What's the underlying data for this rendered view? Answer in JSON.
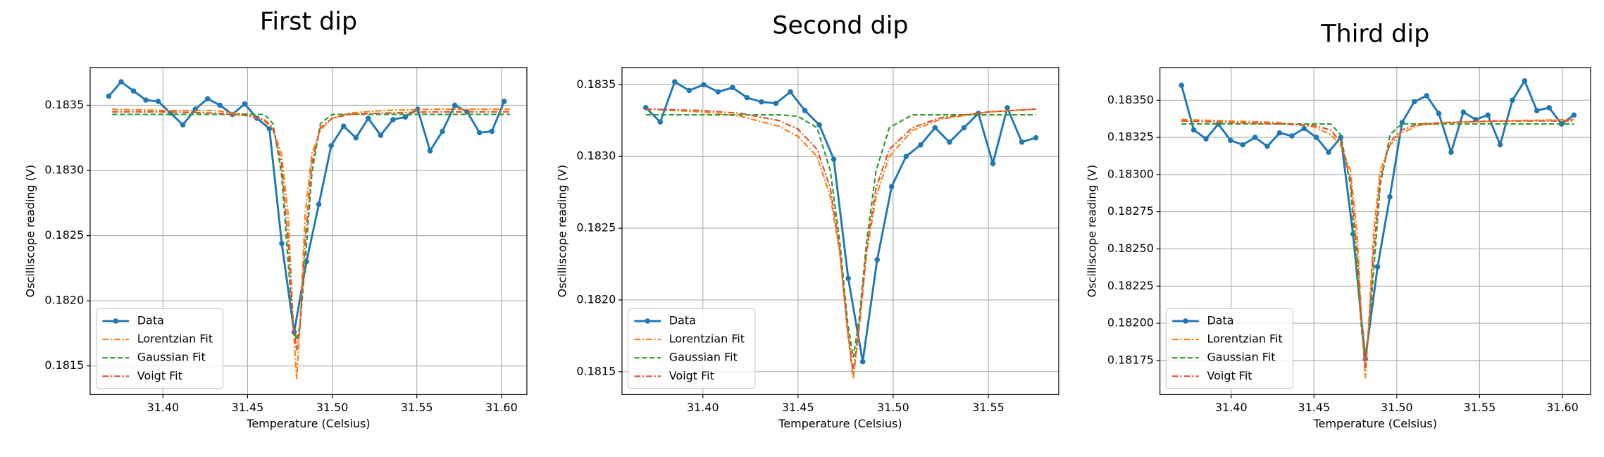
{
  "chart_data": [
    {
      "type": "line",
      "title": "First dip",
      "xlabel": "Temperature (Celsius)",
      "ylabel": "Oscilliscope reading (V)",
      "xlim": [
        31.357,
        31.615
      ],
      "ylim": [
        0.18128,
        0.18379
      ],
      "xticks": [
        {
          "value": 31.4,
          "label": "31.40"
        },
        31.45,
        {
          "value": 31.5,
          "label": "31.50"
        },
        31.55,
        {
          "value": 31.6,
          "label": "31.60"
        }
      ],
      "yticks": [
        0.1815,
        {
          "value": 0.182,
          "label": "0.1820"
        },
        0.1825,
        {
          "value": 0.183,
          "label": "0.1830"
        },
        0.1835
      ],
      "grid": true,
      "legend": "lower left",
      "series": [
        {
          "name": "Data",
          "color": "#1f77b4",
          "linestyle": "solid",
          "marker": "o",
          "x": [
            31.368,
            31.3753,
            31.3826,
            31.3899,
            31.3972,
            31.4045,
            31.4118,
            31.4191,
            31.4264,
            31.4337,
            31.441,
            31.4483,
            31.4556,
            31.4629,
            31.4702,
            31.4775,
            31.4848,
            31.4921,
            31.4994,
            31.5067,
            31.514,
            31.5213,
            31.5286,
            31.5359,
            31.5432,
            31.5505,
            31.5578,
            31.5651,
            31.5724,
            31.5797,
            31.587,
            31.5943,
            31.6016
          ],
          "values": [
            0.18357,
            0.18368,
            0.18361,
            0.18354,
            0.18353,
            0.18344,
            0.18335,
            0.18347,
            0.18355,
            0.1835,
            0.18343,
            0.18351,
            0.1834,
            0.18332,
            0.18244,
            0.18176,
            0.1823,
            0.18274,
            0.18319,
            0.18334,
            0.18325,
            0.1834,
            0.18327,
            0.18339,
            0.18341,
            0.18347,
            0.18315,
            0.1833,
            0.1835,
            0.18345,
            0.18329,
            0.1833,
            0.18353
          ]
        },
        {
          "name": "Lorentzian Fit",
          "color": "#ff7f0e",
          "linestyle": "dashdot",
          "x": [
            31.37,
            31.4,
            31.43,
            31.45,
            31.46,
            31.465,
            31.47,
            31.474,
            31.477,
            31.479,
            31.481,
            31.484,
            31.488,
            31.493,
            31.5,
            31.51,
            31.53,
            31.56,
            31.605
          ],
          "values": [
            0.18347,
            0.18346,
            0.18346,
            0.18343,
            0.18338,
            0.18331,
            0.18313,
            0.18266,
            0.18181,
            0.1814,
            0.18181,
            0.18266,
            0.18313,
            0.18331,
            0.1834,
            0.18344,
            0.18346,
            0.18347,
            0.18347
          ]
        },
        {
          "name": "Gaussian Fit",
          "color": "#2ca02c",
          "linestyle": "dashed",
          "x": [
            31.37,
            31.4,
            31.43,
            31.45,
            31.46,
            31.465,
            31.47,
            31.474,
            31.477,
            31.479,
            31.481,
            31.484,
            31.488,
            31.493,
            31.5,
            31.51,
            31.53,
            31.56,
            31.605
          ],
          "values": [
            0.18343,
            0.18343,
            0.18343,
            0.18343,
            0.18343,
            0.18336,
            0.18298,
            0.18229,
            0.18181,
            0.1817,
            0.18181,
            0.18229,
            0.18298,
            0.18336,
            0.18343,
            0.18343,
            0.18343,
            0.18343,
            0.18343
          ]
        },
        {
          "name": "Voigt Fit",
          "color": "#e0522f",
          "linestyle": "dashdot",
          "x": [
            31.37,
            31.4,
            31.43,
            31.45,
            31.46,
            31.465,
            31.47,
            31.474,
            31.477,
            31.479,
            31.481,
            31.484,
            31.488,
            31.493,
            31.5,
            31.51,
            31.53,
            31.56,
            31.605
          ],
          "values": [
            0.18345,
            0.18345,
            0.18344,
            0.18342,
            0.18339,
            0.18333,
            0.18306,
            0.18245,
            0.18181,
            0.18162,
            0.18181,
            0.18245,
            0.18306,
            0.18333,
            0.1834,
            0.18343,
            0.18344,
            0.18345,
            0.18345
          ]
        }
      ]
    },
    {
      "type": "line",
      "title": "Second dip",
      "xlabel": "Temperature (Celsius)",
      "ylabel": "Oscilliscope reading (V)",
      "xlim": [
        31.3575,
        31.587
      ],
      "ylim": [
        0.18134,
        0.18362
      ],
      "xticks": [
        {
          "value": 31.4,
          "label": "31.40"
        },
        31.45,
        {
          "value": 31.5,
          "label": "31.50"
        },
        31.55
      ],
      "yticks": [
        0.1815,
        {
          "value": 0.182,
          "label": "0.1820"
        },
        0.1825,
        {
          "value": 0.183,
          "label": "0.1830"
        },
        0.1835
      ],
      "grid": true,
      "legend": "lower left",
      "series": [
        {
          "name": "Data",
          "color": "#1f77b4",
          "linestyle": "solid",
          "marker": "o",
          "x": [
            31.37,
            31.3776,
            31.3852,
            31.3928,
            31.4004,
            31.408,
            31.4156,
            31.4232,
            31.4308,
            31.4384,
            31.446,
            31.4536,
            31.4612,
            31.4688,
            31.4764,
            31.484,
            31.4916,
            31.4992,
            31.5068,
            31.5144,
            31.522,
            31.5296,
            31.5372,
            31.5448,
            31.5524,
            31.56,
            31.5676,
            31.575
          ],
          "values": [
            0.18334,
            0.18324,
            0.18352,
            0.18346,
            0.1835,
            0.18345,
            0.18348,
            0.18341,
            0.18338,
            0.18337,
            0.18345,
            0.18332,
            0.18322,
            0.18298,
            0.18215,
            0.18157,
            0.18228,
            0.18279,
            0.183,
            0.18308,
            0.1832,
            0.1831,
            0.1832,
            0.1833,
            0.18295,
            0.18334,
            0.1831,
            0.18313
          ]
        },
        {
          "name": "Lorentzian Fit",
          "color": "#ff7f0e",
          "linestyle": "dashdot",
          "x": [
            31.37,
            31.4,
            31.42,
            31.44,
            31.45,
            31.46,
            31.467,
            31.472,
            31.476,
            31.479,
            31.482,
            31.486,
            31.491,
            31.498,
            31.51,
            31.525,
            31.55,
            31.575
          ],
          "values": [
            0.18333,
            0.18331,
            0.18328,
            0.18321,
            0.18314,
            0.183,
            0.18272,
            0.18232,
            0.18178,
            0.18145,
            0.18178,
            0.18232,
            0.18272,
            0.183,
            0.18318,
            0.18326,
            0.18331,
            0.18333
          ]
        },
        {
          "name": "Gaussian Fit",
          "color": "#2ca02c",
          "linestyle": "dashed",
          "x": [
            31.37,
            31.4,
            31.42,
            31.44,
            31.45,
            31.46,
            31.467,
            31.472,
            31.476,
            31.479,
            31.482,
            31.486,
            31.491,
            31.498,
            31.51,
            31.525,
            31.55,
            31.575
          ],
          "values": [
            0.18329,
            0.18329,
            0.18329,
            0.18329,
            0.18328,
            0.1832,
            0.1829,
            0.1824,
            0.18185,
            0.1816,
            0.18185,
            0.1824,
            0.1829,
            0.1832,
            0.18329,
            0.18329,
            0.18329,
            0.18329
          ]
        },
        {
          "name": "Voigt Fit",
          "color": "#e0522f",
          "linestyle": "dashdot",
          "x": [
            31.37,
            31.4,
            31.42,
            31.44,
            31.45,
            31.46,
            31.467,
            31.472,
            31.476,
            31.479,
            31.482,
            31.486,
            31.491,
            31.498,
            31.51,
            31.525,
            31.55,
            31.575
          ],
          "values": [
            0.18333,
            0.18332,
            0.1833,
            0.18325,
            0.18319,
            0.18305,
            0.18278,
            0.18235,
            0.1818,
            0.1815,
            0.1818,
            0.18235,
            0.18278,
            0.18305,
            0.1832,
            0.18327,
            0.18331,
            0.18333
          ]
        }
      ]
    },
    {
      "type": "line",
      "title": "Third dip",
      "xlabel": "Temperature (Celsius)",
      "ylabel": "Oscilliscope reading (V)",
      "xlim": [
        31.357,
        31.617
      ],
      "ylim": [
        0.18152,
        0.18372
      ],
      "xticks": [
        {
          "value": 31.4,
          "label": "31.40"
        },
        31.45,
        {
          "value": 31.5,
          "label": "31.50"
        },
        31.55,
        {
          "value": 31.6,
          "label": "31.60"
        }
      ],
      "yticks": [
        0.18175,
        {
          "value": 0.182,
          "label": "0.18200"
        },
        0.18225,
        {
          "value": 0.1825,
          "label": "0.18250"
        },
        0.18275,
        {
          "value": 0.183,
          "label": "0.18300"
        },
        0.18325,
        {
          "value": 0.1835,
          "label": "0.18350"
        }
      ],
      "grid": true,
      "legend": "lower left",
      "series": [
        {
          "name": "Data",
          "color": "#1f77b4",
          "linestyle": "solid",
          "marker": "o",
          "x": [
            31.37,
            31.3774,
            31.3848,
            31.3922,
            31.3996,
            31.407,
            31.4144,
            31.4218,
            31.4292,
            31.4366,
            31.444,
            31.4514,
            31.4588,
            31.4662,
            31.4736,
            31.481,
            31.4884,
            31.4958,
            31.5032,
            31.5106,
            31.518,
            31.5254,
            31.5328,
            31.5402,
            31.5476,
            31.555,
            31.5624,
            31.5698,
            31.5772,
            31.5846,
            31.592,
            31.5994,
            31.607
          ],
          "values": [
            0.1836,
            0.1833,
            0.18324,
            0.18334,
            0.18323,
            0.1832,
            0.18325,
            0.18319,
            0.18328,
            0.18326,
            0.18331,
            0.18325,
            0.18315,
            0.18325,
            0.1826,
            0.18176,
            0.18238,
            0.18285,
            0.18335,
            0.18349,
            0.18353,
            0.18341,
            0.18315,
            0.18342,
            0.18337,
            0.1834,
            0.1832,
            0.1835,
            0.18363,
            0.18343,
            0.18345,
            0.18334,
            0.1834
          ]
        },
        {
          "name": "Lorentzian Fit",
          "color": "#ff7f0e",
          "linestyle": "dashdot",
          "x": [
            31.37,
            31.4,
            31.43,
            31.45,
            31.46,
            31.466,
            31.472,
            31.476,
            31.479,
            31.481,
            31.483,
            31.486,
            31.49,
            31.496,
            31.503,
            31.513,
            31.53,
            31.56,
            31.607
          ],
          "values": [
            0.18337,
            0.18336,
            0.18335,
            0.18332,
            0.18327,
            0.1832,
            0.18303,
            0.18261,
            0.18198,
            0.18163,
            0.18198,
            0.18261,
            0.18303,
            0.1832,
            0.18328,
            0.18333,
            0.18335,
            0.18336,
            0.18337
          ]
        },
        {
          "name": "Gaussian Fit",
          "color": "#2ca02c",
          "linestyle": "dashed",
          "x": [
            31.37,
            31.4,
            31.43,
            31.45,
            31.46,
            31.466,
            31.472,
            31.476,
            31.479,
            31.481,
            31.483,
            31.486,
            31.49,
            31.496,
            31.503,
            31.513,
            31.53,
            31.56,
            31.607
          ],
          "values": [
            0.18334,
            0.18334,
            0.18334,
            0.18334,
            0.18334,
            0.18327,
            0.18293,
            0.18235,
            0.18192,
            0.1818,
            0.18192,
            0.18235,
            0.18293,
            0.18327,
            0.18334,
            0.18334,
            0.18334,
            0.18334,
            0.18334
          ]
        },
        {
          "name": "Voigt Fit",
          "color": "#e0522f",
          "linestyle": "dashdot",
          "x": [
            31.37,
            31.4,
            31.43,
            31.45,
            31.46,
            31.466,
            31.472,
            31.476,
            31.479,
            31.481,
            31.483,
            31.486,
            31.49,
            31.496,
            31.503,
            31.513,
            31.53,
            31.56,
            31.607
          ],
          "values": [
            0.18336,
            0.18335,
            0.18334,
            0.18333,
            0.1833,
            0.18322,
            0.18297,
            0.18248,
            0.18195,
            0.1817,
            0.18195,
            0.18248,
            0.18297,
            0.18322,
            0.1833,
            0.18334,
            0.18335,
            0.18336,
            0.18336
          ]
        }
      ]
    }
  ]
}
